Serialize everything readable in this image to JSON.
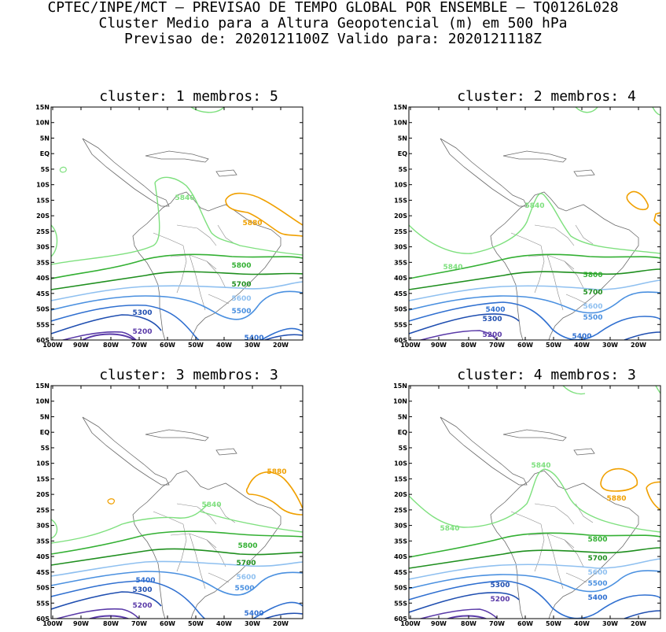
{
  "header": {
    "line1": "CPTEC/INPE/MCT — PREVISAO DE TEMPO GLOBAL POR ENSEMBLE — TQ0126L028",
    "line2": "Cluster Medio para a Altura Geopotencial (m) em 500 hPa",
    "line3": "Previsao de: 2020121100Z   Valido para: 2020121118Z"
  },
  "colors": {
    "c5200": "#5a3aa8",
    "c5300": "#1f4eb0",
    "c5400": "#2f6fd0",
    "c5500": "#4a90e0",
    "c5600": "#8fc0f0",
    "c5700": "#1f8f1f",
    "c5800": "#33b033",
    "c5840": "#7ee07e",
    "c5880": "#f0a000"
  },
  "axes": {
    "lat_labels": [
      "15N",
      "10N",
      "5N",
      "EQ",
      "5S",
      "10S",
      "15S",
      "20S",
      "25S",
      "30S",
      "35S",
      "40S",
      "45S",
      "50S",
      "55S",
      "60S"
    ],
    "lon_labels": [
      "100W",
      "90W",
      "80W",
      "70W",
      "60W",
      "50W",
      "40W",
      "30W",
      "20W"
    ]
  },
  "contour_labels": {
    "l5880": "5880",
    "l5840": "5840",
    "l5800": "5800",
    "l5700": "5700",
    "l5600": "5600",
    "l5500": "5500",
    "l5400": "5400",
    "l5300": "5300",
    "l5200": "5200"
  },
  "panels": [
    {
      "title": "cluster: 1  membros: 5"
    },
    {
      "title": "cluster: 2  membros: 4"
    },
    {
      "title": "cluster: 3  membros: 3"
    },
    {
      "title": "cluster: 4  membros: 3"
    }
  ]
}
